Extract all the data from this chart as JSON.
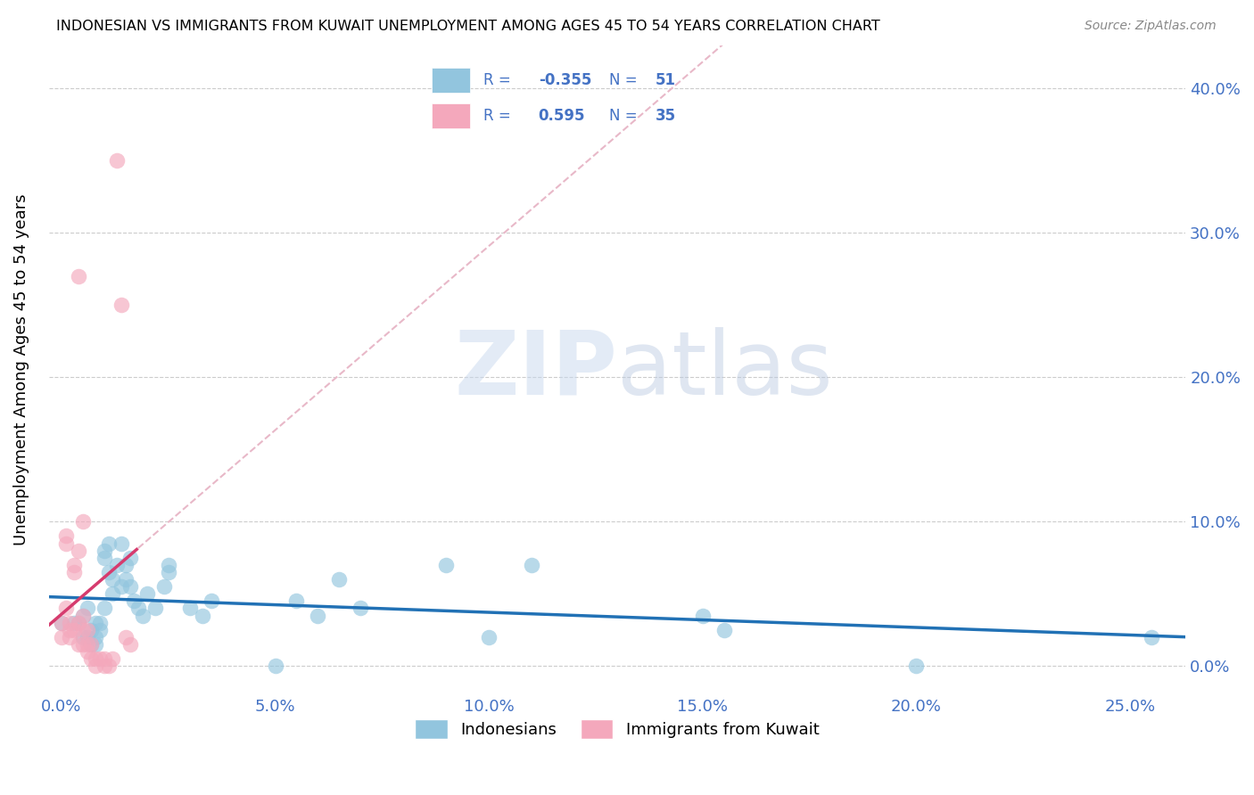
{
  "title": "INDONESIAN VS IMMIGRANTS FROM KUWAIT UNEMPLOYMENT AMONG AGES 45 TO 54 YEARS CORRELATION CHART",
  "source": "Source: ZipAtlas.com",
  "xlabel_ticks": [
    "0.0%",
    "5.0%",
    "10.0%",
    "15.0%",
    "20.0%",
    "25.0%"
  ],
  "ylabel_ticks": [
    "0.0%",
    "10.0%",
    "20.0%",
    "30.0%",
    "40.0%"
  ],
  "xlabel_tick_vals": [
    0.0,
    0.05,
    0.1,
    0.15,
    0.2,
    0.25
  ],
  "ylabel_tick_vals": [
    0.0,
    0.1,
    0.2,
    0.3,
    0.4
  ],
  "xlim": [
    -0.003,
    0.263
  ],
  "ylim": [
    -0.02,
    0.43
  ],
  "legend_r_blue": "-0.355",
  "legend_n_blue": "51",
  "legend_r_pink": "0.595",
  "legend_n_pink": "35",
  "blue_color": "#92c5de",
  "blue_line_color": "#2171b5",
  "pink_color": "#f4a8bc",
  "pink_line_color": "#d63b6e",
  "dashed_line_color": "#e8b8c8",
  "blue_scatter_x": [
    0.0,
    0.003,
    0.004,
    0.005,
    0.005,
    0.006,
    0.006,
    0.007,
    0.007,
    0.008,
    0.008,
    0.008,
    0.009,
    0.009,
    0.01,
    0.01,
    0.01,
    0.011,
    0.011,
    0.012,
    0.012,
    0.013,
    0.014,
    0.014,
    0.015,
    0.015,
    0.016,
    0.016,
    0.017,
    0.018,
    0.019,
    0.02,
    0.022,
    0.024,
    0.025,
    0.025,
    0.03,
    0.033,
    0.035,
    0.05,
    0.055,
    0.06,
    0.065,
    0.07,
    0.09,
    0.1,
    0.11,
    0.15,
    0.155,
    0.2,
    0.255
  ],
  "blue_scatter_y": [
    0.03,
    0.03,
    0.03,
    0.035,
    0.02,
    0.04,
    0.02,
    0.025,
    0.015,
    0.03,
    0.02,
    0.015,
    0.03,
    0.025,
    0.075,
    0.08,
    0.04,
    0.085,
    0.065,
    0.06,
    0.05,
    0.07,
    0.085,
    0.055,
    0.07,
    0.06,
    0.075,
    0.055,
    0.045,
    0.04,
    0.035,
    0.05,
    0.04,
    0.055,
    0.07,
    0.065,
    0.04,
    0.035,
    0.045,
    0.0,
    0.045,
    0.035,
    0.06,
    0.04,
    0.07,
    0.02,
    0.07,
    0.035,
    0.025,
    0.0,
    0.02
  ],
  "pink_scatter_x": [
    0.0,
    0.0,
    0.001,
    0.001,
    0.001,
    0.002,
    0.002,
    0.002,
    0.003,
    0.003,
    0.003,
    0.004,
    0.004,
    0.004,
    0.004,
    0.005,
    0.005,
    0.005,
    0.005,
    0.006,
    0.006,
    0.006,
    0.007,
    0.007,
    0.008,
    0.008,
    0.009,
    0.01,
    0.01,
    0.011,
    0.012,
    0.013,
    0.014,
    0.015,
    0.016
  ],
  "pink_scatter_y": [
    0.03,
    0.02,
    0.09,
    0.085,
    0.04,
    0.03,
    0.025,
    0.02,
    0.07,
    0.065,
    0.025,
    0.27,
    0.08,
    0.03,
    0.015,
    0.1,
    0.035,
    0.025,
    0.015,
    0.025,
    0.015,
    0.01,
    0.015,
    0.005,
    0.005,
    0.0,
    0.005,
    0.005,
    0.0,
    0.0,
    0.005,
    0.35,
    0.25,
    0.02,
    0.015
  ],
  "watermark_zip": "ZIP",
  "watermark_atlas": "atlas",
  "legend_label_blue": "Indonesians",
  "legend_label_pink": "Immigrants from Kuwait"
}
